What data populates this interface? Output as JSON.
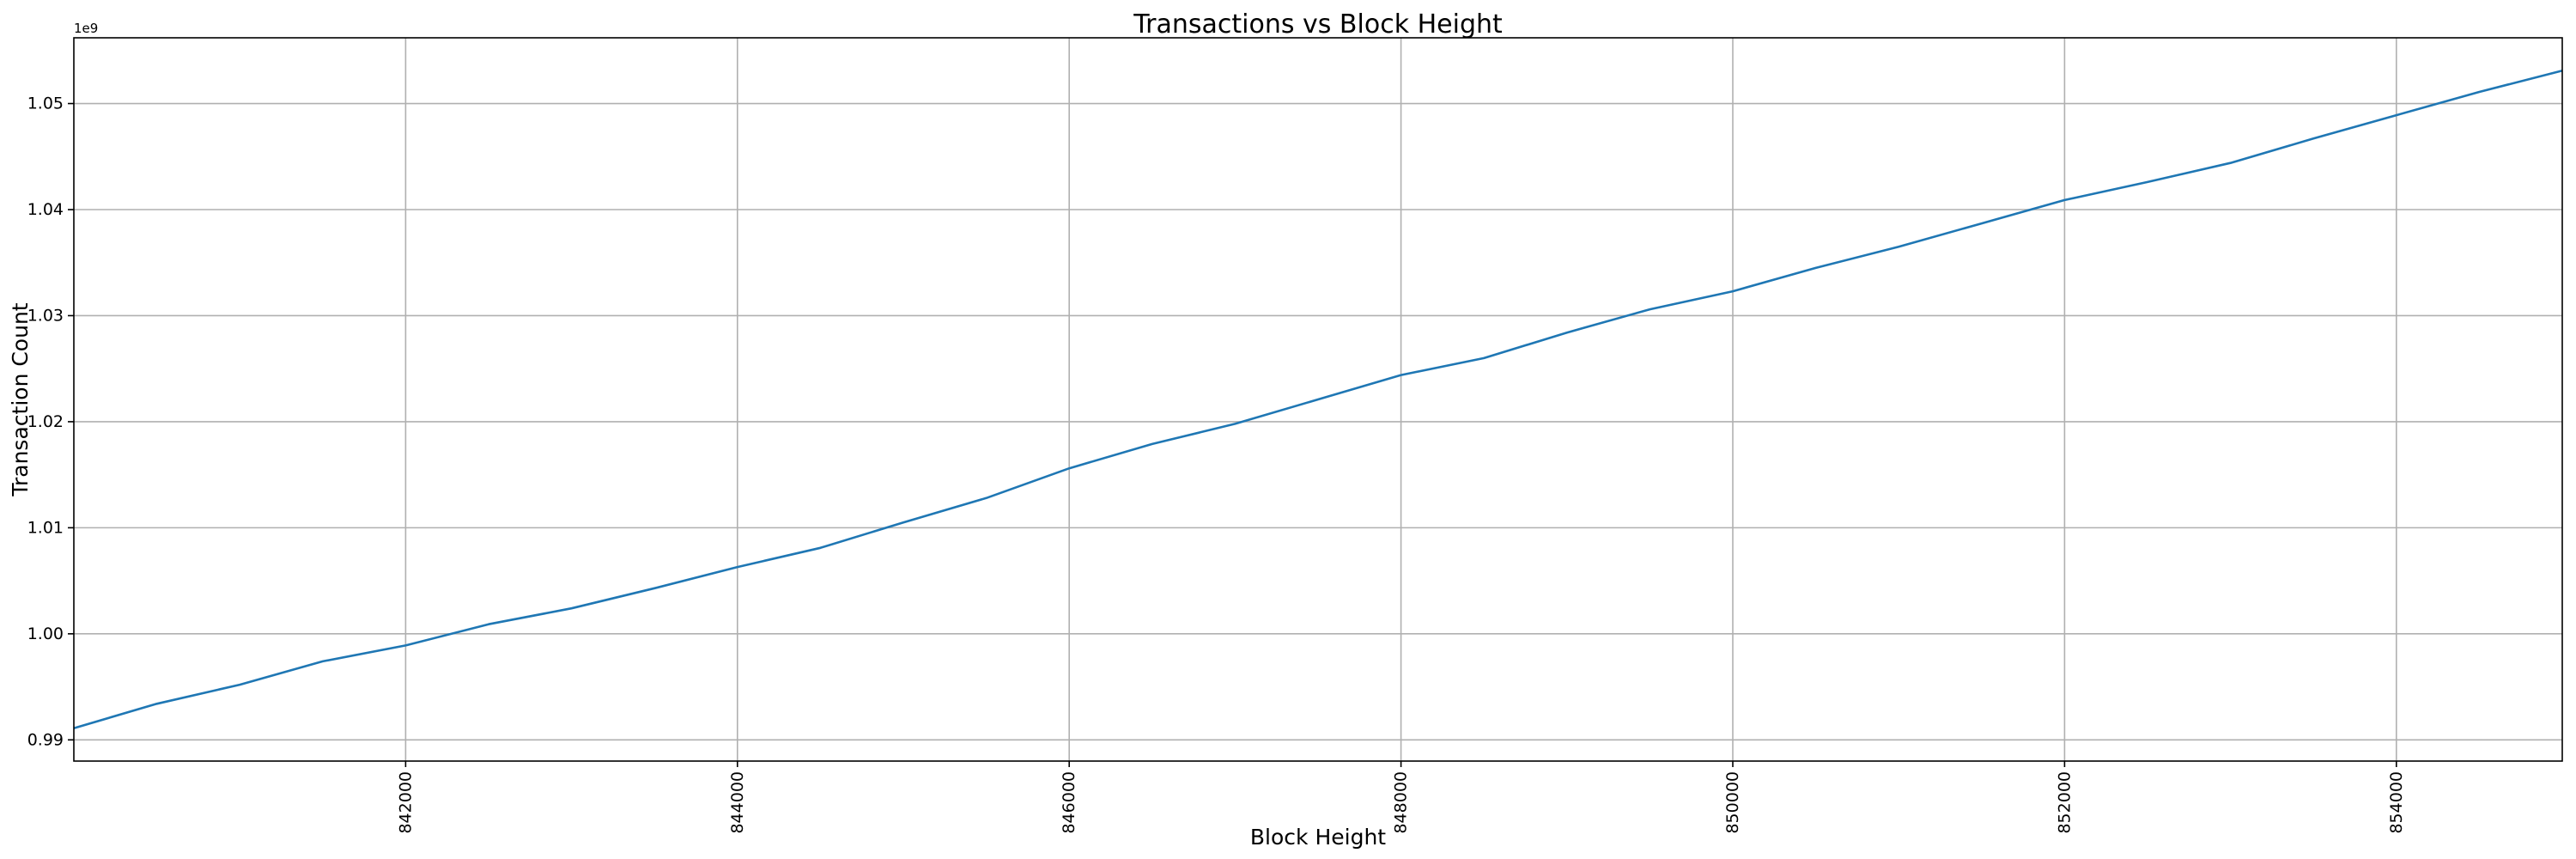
{
  "chart_data": {
    "type": "line",
    "title": "Transactions vs Block Height",
    "xlabel": "Block Height",
    "ylabel": "Transaction Count",
    "y_offset_label": "1e9",
    "xlim": [
      840000,
      855000
    ],
    "ylim": [
      0.988,
      1.0562
    ],
    "x_ticks": [
      842000,
      844000,
      846000,
      848000,
      850000,
      852000,
      854000
    ],
    "x_tick_labels": [
      "842000",
      "844000",
      "846000",
      "848000",
      "850000",
      "852000",
      "854000"
    ],
    "y_ticks": [
      0.99,
      1.0,
      1.01,
      1.02,
      1.03,
      1.04,
      1.05
    ],
    "y_tick_labels": [
      "0.99",
      "1.00",
      "1.01",
      "1.02",
      "1.03",
      "1.04",
      "1.05"
    ],
    "x_tick_rotation": 90,
    "grid": true,
    "line_color": "#1f77b4",
    "series": [
      {
        "x": [
          840000,
          840500,
          841000,
          841500,
          842000,
          842500,
          843000,
          843500,
          844000,
          844500,
          845000,
          845500,
          846000,
          846500,
          847000,
          847500,
          848000,
          848500,
          849000,
          849500,
          850000,
          850500,
          851000,
          851500,
          852000,
          852500,
          853000,
          853500,
          854000,
          854500,
          855000
        ],
        "y": [
          0.9911,
          0.9934,
          0.9952,
          0.9974,
          0.9989,
          1.0009,
          1.0024,
          1.0043,
          1.0063,
          1.0081,
          1.0105,
          1.0128,
          1.0156,
          1.0179,
          1.0198,
          1.0221,
          1.0244,
          1.026,
          1.0284,
          1.0306,
          1.0323,
          1.0345,
          1.0365,
          1.0387,
          1.0409,
          1.0426,
          1.0444,
          1.0467,
          1.0489,
          1.0511,
          1.0531
        ]
      }
    ]
  }
}
